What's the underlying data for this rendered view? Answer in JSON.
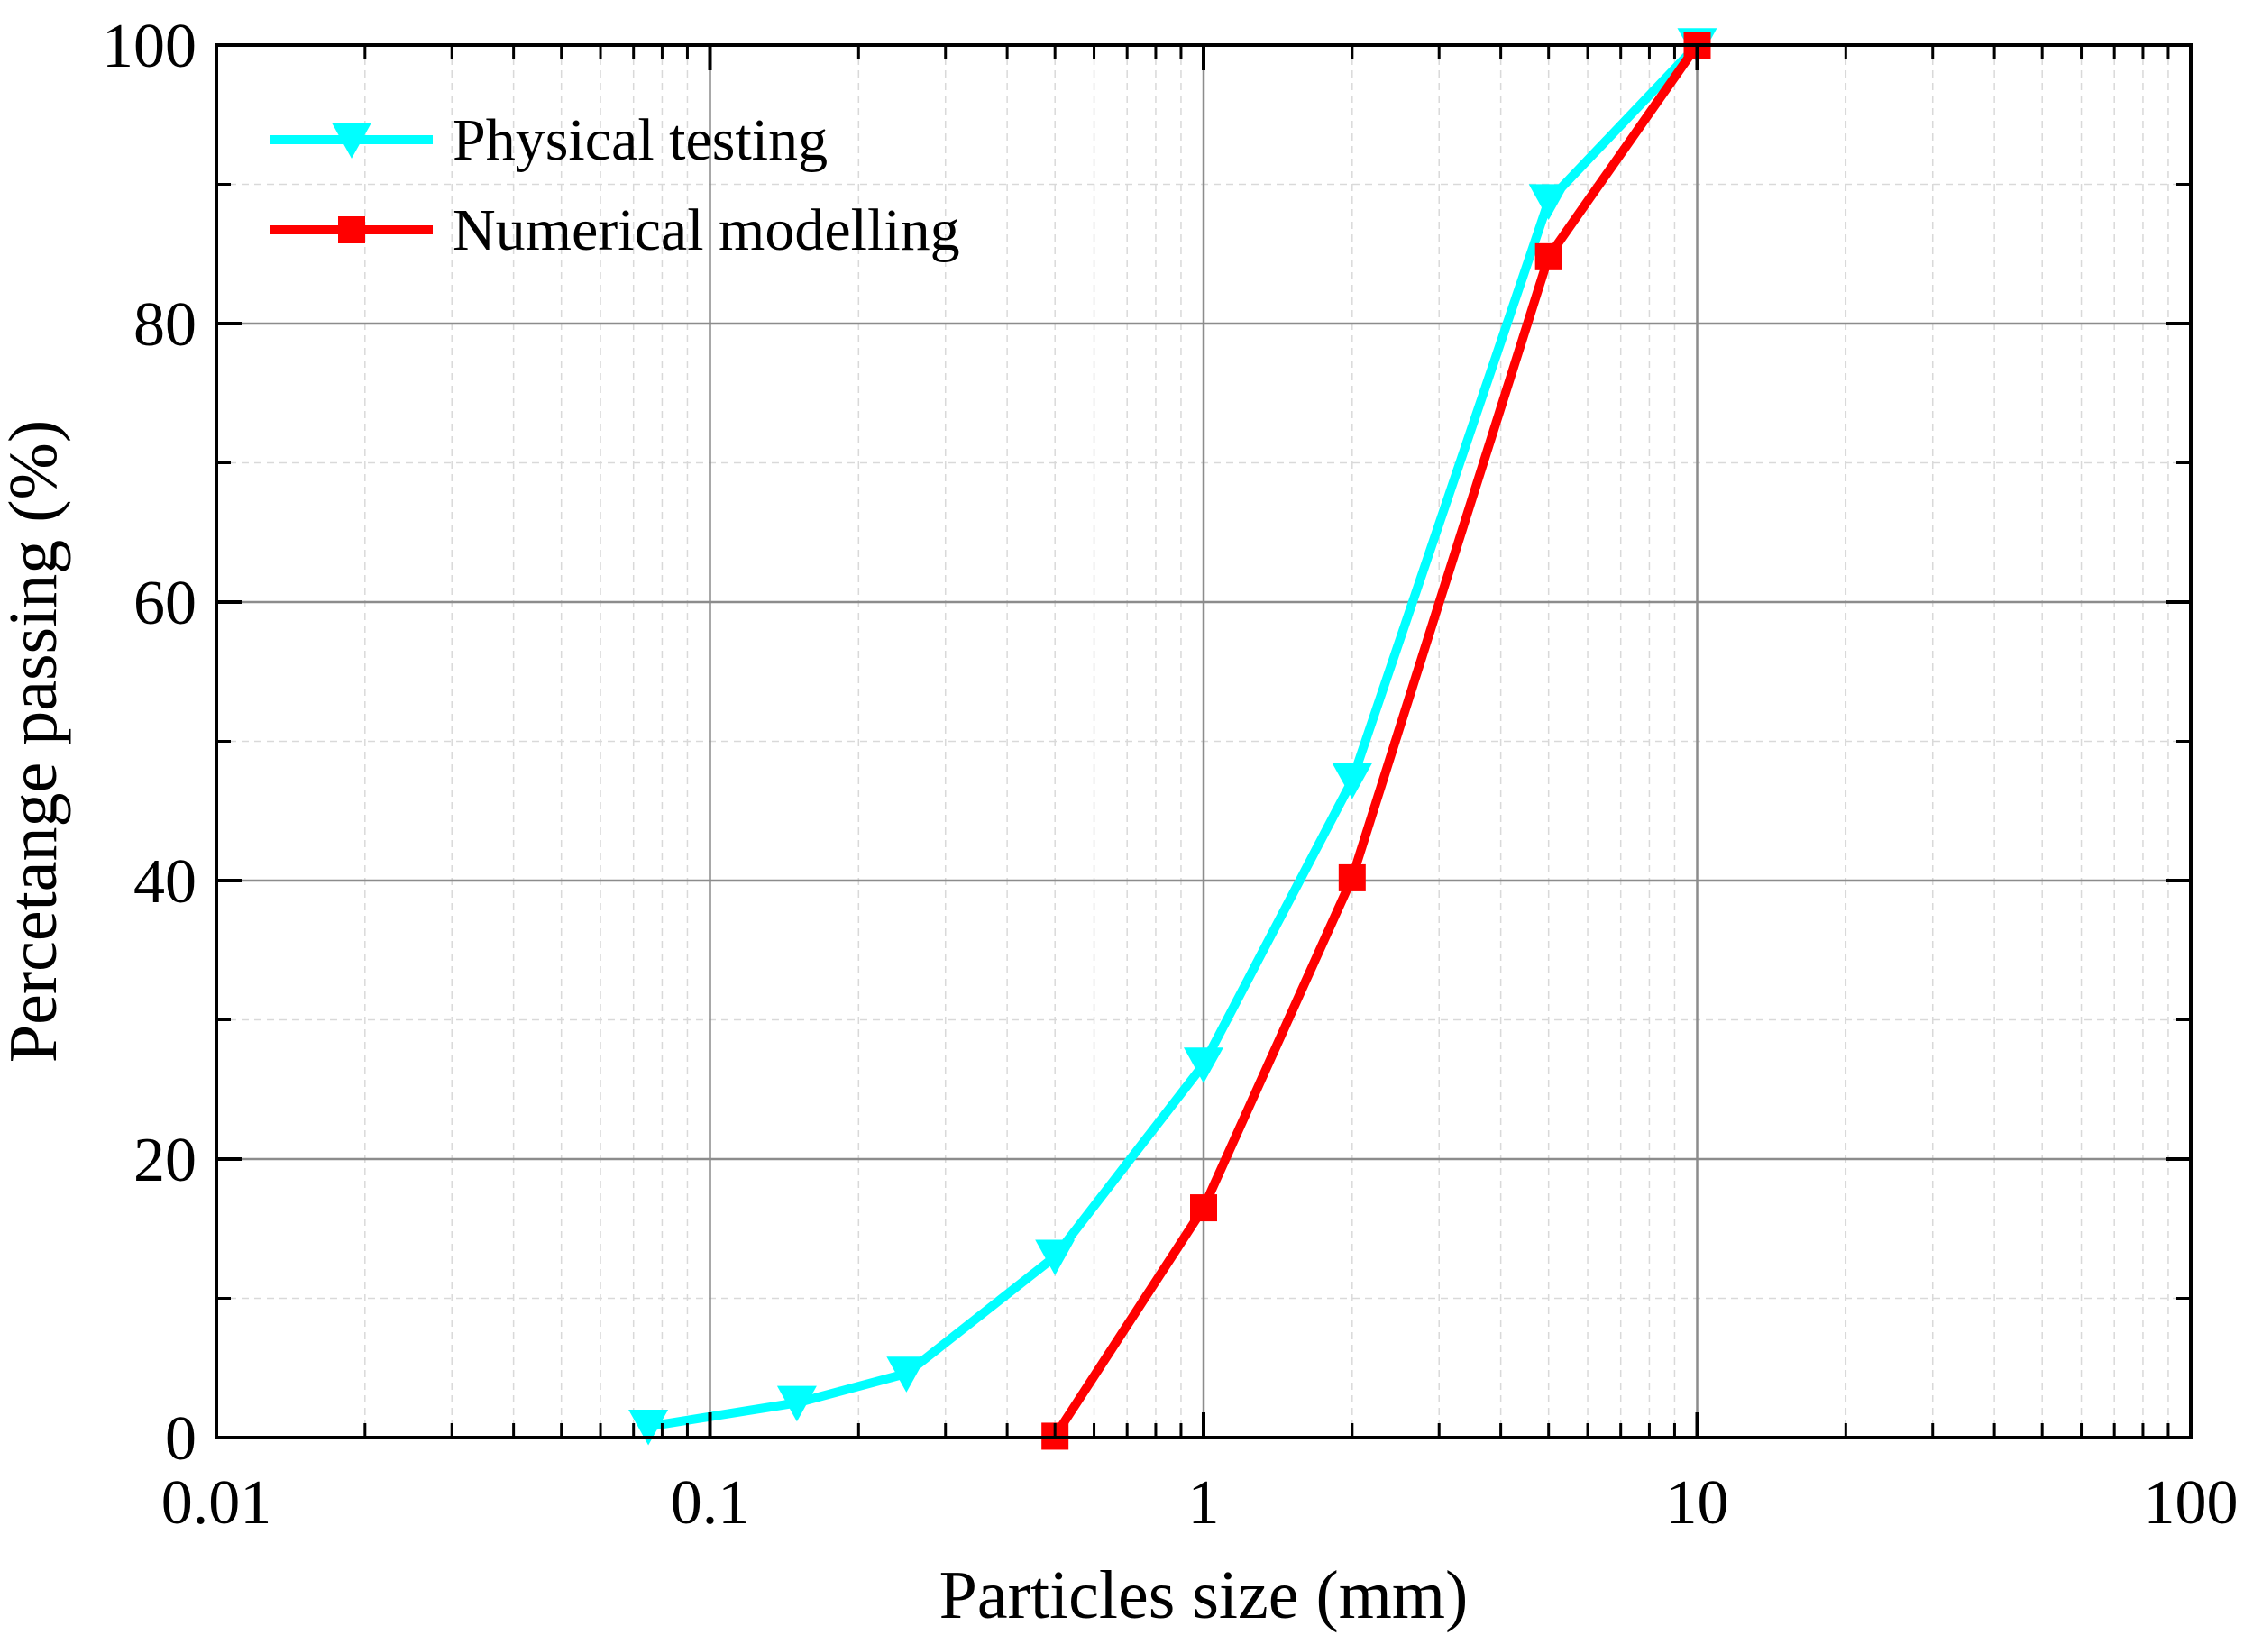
{
  "chart_data": {
    "type": "line",
    "xscale": "log",
    "xlabel": "Particles size (mm)",
    "ylabel": "Percetange passing (%)",
    "xlim": [
      0.01,
      100
    ],
    "ylim": [
      0,
      100
    ],
    "grid": true,
    "legend_position": "top-left",
    "xticks": [
      0.01,
      0.1,
      1,
      10,
      100
    ],
    "xtick_labels": [
      "0.01",
      "0.1",
      "1",
      "10",
      "100"
    ],
    "yticks": [
      0,
      20,
      40,
      60,
      80,
      100
    ],
    "ytick_labels": [
      "0",
      "20",
      "40",
      "60",
      "80",
      "100"
    ],
    "series": [
      {
        "name": "Physical testing",
        "color": "#00FFFF",
        "marker": "triangle-down",
        "x": [
          0.075,
          0.15,
          0.25,
          0.5,
          1,
          2,
          5,
          10
        ],
        "y": [
          0.8,
          2.5,
          4.6,
          13.0,
          26.8,
          47.2,
          88.8,
          100
        ]
      },
      {
        "name": "Numerical modelling",
        "color": "#FF0000",
        "marker": "square",
        "x": [
          0.5,
          1,
          2,
          5,
          10
        ],
        "y": [
          0.1,
          16.5,
          40.2,
          84.8,
          100
        ]
      }
    ]
  }
}
